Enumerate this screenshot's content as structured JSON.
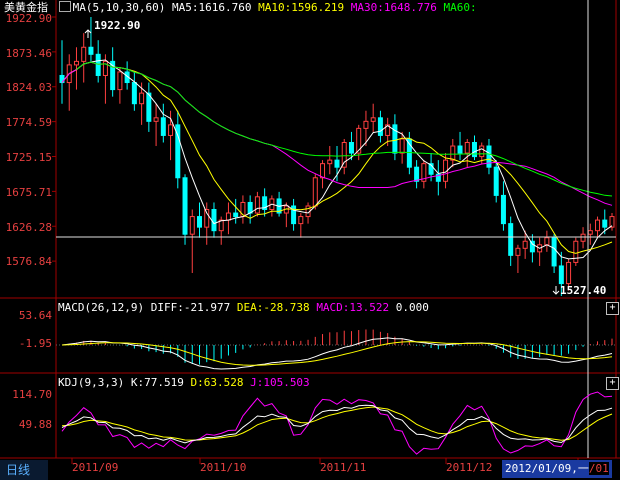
{
  "header": {
    "title": "美黄金指",
    "ma_label": "MA(5,10,30,60)",
    "ma5": "MA5:1616.760",
    "ma10": "MA10:1596.219",
    "ma30": "MA30:1648.776",
    "ma60": "MA60:"
  },
  "macd_header": {
    "label": "MACD(26,12,9)",
    "diff": "DIFF:-21.977",
    "dea": "DEA:-28.738",
    "macd": "MACD:13.522",
    "zero": "0.000"
  },
  "kdj_header": {
    "label": "KDJ(9,3,3)",
    "k": "K:77.519",
    "d": "D:63.528",
    "j": "J:105.503"
  },
  "period_tab": "日线",
  "cursor_date": "2012/01/09,一",
  "cursor_date_tail": "/01",
  "expand_button": "+",
  "colors": {
    "up": "#ff4040",
    "down": "#00ffff",
    "ma5": "#ffffff",
    "ma10": "#ffff00",
    "ma30": "#ff00ff",
    "ma60": "#00ff00",
    "axis": "#a00000",
    "label": "#e64040"
  },
  "chart_data": [
    {
      "type": "candlestick",
      "title": "美黄金指",
      "y_ticks": [
        1922.9,
        1873.46,
        1824.03,
        1774.59,
        1725.15,
        1675.71,
        1626.28,
        1576.84
      ],
      "ylim": [
        1527.4,
        1922.9
      ],
      "x_ticks": [
        "2011/09",
        "2011/10",
        "2011/11",
        "2011/12"
      ],
      "annotations": [
        {
          "label": "1922.90",
          "type": "high"
        },
        {
          "label": "1527.40",
          "type": "low"
        }
      ],
      "ohlc": [
        [
          1840,
          1890,
          1800,
          1830
        ],
        [
          1830,
          1870,
          1790,
          1855
        ],
        [
          1855,
          1880,
          1820,
          1860
        ],
        [
          1860,
          1900,
          1830,
          1880
        ],
        [
          1880,
          1922.9,
          1860,
          1870
        ],
        [
          1870,
          1890,
          1830,
          1840
        ],
        [
          1840,
          1870,
          1800,
          1860
        ],
        [
          1860,
          1880,
          1810,
          1820
        ],
        [
          1820,
          1850,
          1800,
          1845
        ],
        [
          1845,
          1860,
          1820,
          1830
        ],
        [
          1830,
          1845,
          1790,
          1800
        ],
        [
          1800,
          1830,
          1770,
          1815
        ],
        [
          1815,
          1830,
          1760,
          1775
        ],
        [
          1775,
          1800,
          1740,
          1780
        ],
        [
          1780,
          1800,
          1745,
          1755
        ],
        [
          1755,
          1790,
          1720,
          1770
        ],
        [
          1770,
          1790,
          1680,
          1695
        ],
        [
          1695,
          1700,
          1600,
          1615
        ],
        [
          1615,
          1650,
          1560,
          1640
        ],
        [
          1640,
          1660,
          1610,
          1625
        ],
        [
          1625,
          1660,
          1600,
          1650
        ],
        [
          1650,
          1660,
          1610,
          1620
        ],
        [
          1620,
          1640,
          1600,
          1635
        ],
        [
          1635,
          1660,
          1615,
          1645
        ],
        [
          1645,
          1665,
          1630,
          1640
        ],
        [
          1640,
          1670,
          1630,
          1660
        ],
        [
          1660,
          1670,
          1630,
          1645
        ],
        [
          1645,
          1675,
          1640,
          1668
        ],
        [
          1668,
          1680,
          1640,
          1650
        ],
        [
          1650,
          1670,
          1640,
          1665
        ],
        [
          1665,
          1675,
          1640,
          1645
        ],
        [
          1645,
          1660,
          1625,
          1655
        ],
        [
          1655,
          1665,
          1620,
          1630
        ],
        [
          1630,
          1645,
          1610,
          1640
        ],
        [
          1640,
          1660,
          1630,
          1655
        ],
        [
          1655,
          1700,
          1650,
          1695
        ],
        [
          1695,
          1720,
          1680,
          1715
        ],
        [
          1715,
          1740,
          1700,
          1720
        ],
        [
          1720,
          1740,
          1690,
          1710
        ],
        [
          1710,
          1750,
          1700,
          1745
        ],
        [
          1745,
          1760,
          1720,
          1730
        ],
        [
          1730,
          1770,
          1720,
          1765
        ],
        [
          1765,
          1790,
          1740,
          1775
        ],
        [
          1775,
          1800,
          1760,
          1780
        ],
        [
          1780,
          1790,
          1745,
          1755
        ],
        [
          1755,
          1780,
          1740,
          1770
        ],
        [
          1770,
          1785,
          1720,
          1730
        ],
        [
          1730,
          1760,
          1715,
          1750
        ],
        [
          1750,
          1760,
          1700,
          1710
        ],
        [
          1710,
          1720,
          1680,
          1690
        ],
        [
          1690,
          1720,
          1680,
          1715
        ],
        [
          1715,
          1730,
          1690,
          1700
        ],
        [
          1700,
          1720,
          1670,
          1690
        ],
        [
          1690,
          1730,
          1680,
          1720
        ],
        [
          1720,
          1750,
          1710,
          1740
        ],
        [
          1740,
          1760,
          1720,
          1730
        ],
        [
          1730,
          1750,
          1710,
          1745
        ],
        [
          1745,
          1755,
          1720,
          1725
        ],
        [
          1725,
          1745,
          1715,
          1740
        ],
        [
          1740,
          1750,
          1700,
          1710
        ],
        [
          1710,
          1720,
          1660,
          1670
        ],
        [
          1670,
          1690,
          1620,
          1630
        ],
        [
          1630,
          1640,
          1570,
          1585
        ],
        [
          1585,
          1600,
          1560,
          1595
        ],
        [
          1595,
          1620,
          1580,
          1605
        ],
        [
          1605,
          1615,
          1575,
          1590
        ],
        [
          1590,
          1610,
          1570,
          1600
        ],
        [
          1600,
          1620,
          1590,
          1610
        ],
        [
          1610,
          1615,
          1560,
          1570
        ],
        [
          1570,
          1590,
          1527.4,
          1545
        ],
        [
          1545,
          1580,
          1535,
          1575
        ],
        [
          1575,
          1610,
          1570,
          1605
        ],
        [
          1605,
          1625,
          1595,
          1615
        ],
        [
          1615,
          1630,
          1600,
          1620
        ],
        [
          1620,
          1640,
          1610,
          1635
        ],
        [
          1635,
          1650,
          1615,
          1625
        ],
        [
          1625,
          1645,
          1620,
          1640
        ]
      ],
      "ma_values": {
        "MA5": 1616.76,
        "MA10": 1596.219,
        "MA30": 1648.776
      },
      "series": [
        {
          "name": "MA5",
          "color": "#ffffff"
        },
        {
          "name": "MA10",
          "color": "#ffff00"
        },
        {
          "name": "MA30",
          "color": "#ff00ff"
        },
        {
          "name": "MA60",
          "color": "#00ff00"
        }
      ]
    },
    {
      "type": "bar",
      "title": "MACD(26,12,9)",
      "y_ticks": [
        53.64,
        -1.95
      ],
      "values": {
        "DIFF": -21.977,
        "DEA": -28.738,
        "MACD": 13.522
      }
    },
    {
      "type": "line",
      "title": "KDJ(9,3,3)",
      "y_ticks": [
        114.7,
        49.88
      ],
      "values": {
        "K": 77.519,
        "D": 63.528,
        "J": 105.503
      }
    }
  ]
}
